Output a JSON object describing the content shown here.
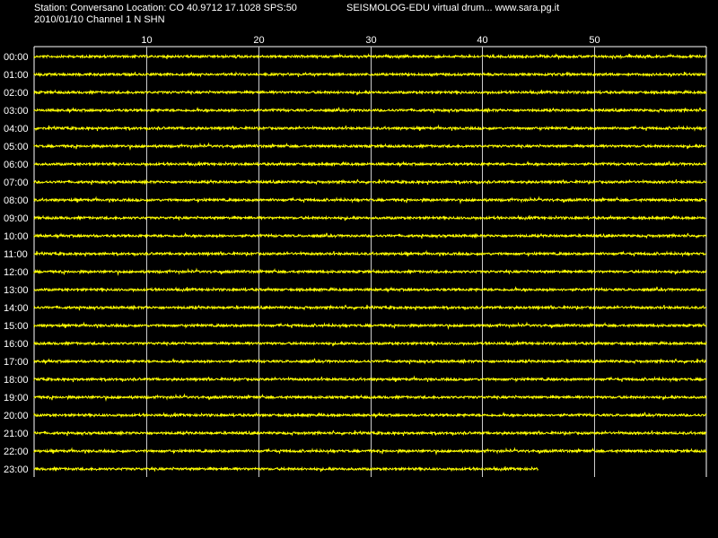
{
  "header": {
    "station_line": "Station: Conversano Location: CO 40.9712 17.1028 SPS:50",
    "date_channel_line": "2010/01/10  Channel 1 N SHN",
    "app_line": "SEISMOLOG-EDU virtual drum... www.sara.pg.it"
  },
  "colors": {
    "background": "#000000",
    "trace": "#ffff00",
    "grid": "#ffffff",
    "text": "#ffffff"
  },
  "drum": {
    "minute_ticks": [
      {
        "value": 10,
        "label": "10"
      },
      {
        "value": 20,
        "label": "20"
      },
      {
        "value": 30,
        "label": "30"
      },
      {
        "value": 40,
        "label": "40"
      },
      {
        "value": 50,
        "label": "50"
      }
    ],
    "hours": [
      {
        "label": "00:00",
        "minutes_recorded": 60
      },
      {
        "label": "01:00",
        "minutes_recorded": 60
      },
      {
        "label": "02:00",
        "minutes_recorded": 60
      },
      {
        "label": "03:00",
        "minutes_recorded": 60
      },
      {
        "label": "04:00",
        "minutes_recorded": 60
      },
      {
        "label": "05:00",
        "minutes_recorded": 60
      },
      {
        "label": "06:00",
        "minutes_recorded": 60
      },
      {
        "label": "07:00",
        "minutes_recorded": 60
      },
      {
        "label": "08:00",
        "minutes_recorded": 60
      },
      {
        "label": "09:00",
        "minutes_recorded": 60
      },
      {
        "label": "10:00",
        "minutes_recorded": 60
      },
      {
        "label": "11:00",
        "minutes_recorded": 60
      },
      {
        "label": "12:00",
        "minutes_recorded": 60
      },
      {
        "label": "13:00",
        "minutes_recorded": 60
      },
      {
        "label": "14:00",
        "minutes_recorded": 60
      },
      {
        "label": "15:00",
        "minutes_recorded": 60
      },
      {
        "label": "16:00",
        "minutes_recorded": 60
      },
      {
        "label": "17:00",
        "minutes_recorded": 60
      },
      {
        "label": "18:00",
        "minutes_recorded": 60
      },
      {
        "label": "19:00",
        "minutes_recorded": 60
      },
      {
        "label": "20:00",
        "minutes_recorded": 60
      },
      {
        "label": "21:00",
        "minutes_recorded": 60
      },
      {
        "label": "22:00",
        "minutes_recorded": 60
      },
      {
        "label": "23:00",
        "minutes_recorded": 45
      }
    ],
    "minutes_per_line": 60
  }
}
